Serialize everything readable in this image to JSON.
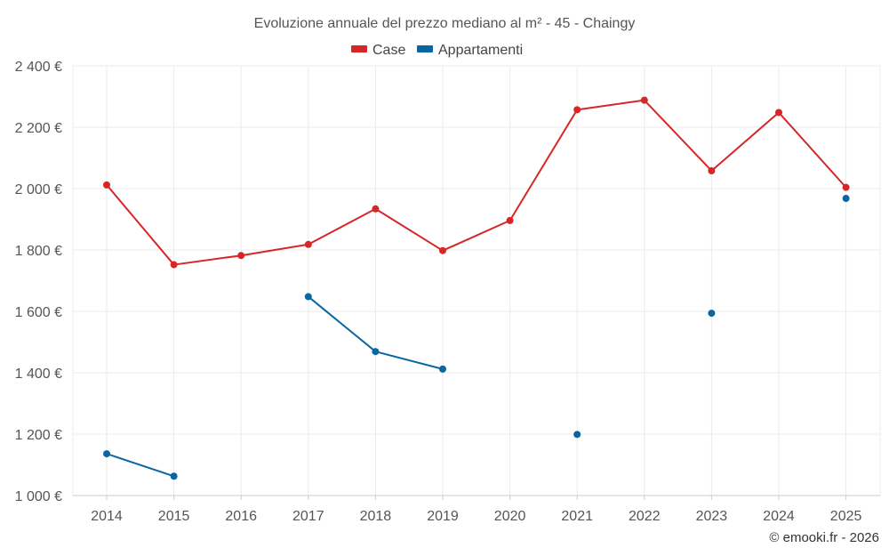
{
  "chart_data": {
    "type": "line",
    "title": "Evoluzione annuale del prezzo mediano al m² - 45 - Chaingy",
    "categories": [
      "2014",
      "2015",
      "2016",
      "2017",
      "2018",
      "2019",
      "2020",
      "2021",
      "2022",
      "2023",
      "2024",
      "2025"
    ],
    "ylim": [
      1000,
      2400
    ],
    "yticks": [
      1000,
      1200,
      1400,
      1600,
      1800,
      2000,
      2200,
      2400
    ],
    "ytick_labels": [
      "1 000 €",
      "1 200 €",
      "1 400 €",
      "1 600 €",
      "1 800 €",
      "2 000 €",
      "2 200 €",
      "2 400 €"
    ],
    "grid": true,
    "legend_position": "top-center",
    "series": [
      {
        "name": "Case",
        "color": "#d62728",
        "values": [
          2012,
          1752,
          1782,
          1818,
          1934,
          1798,
          1896,
          2257,
          2288,
          2058,
          2248,
          2004
        ]
      },
      {
        "name": "Appartamenti",
        "color": "#0a66a0",
        "values": [
          1136,
          1063,
          null,
          1648,
          1469,
          1412,
          null,
          1199,
          null,
          1594,
          null,
          1968
        ]
      }
    ]
  },
  "footer": {
    "copyright": "© emooki.fr - 2026"
  }
}
